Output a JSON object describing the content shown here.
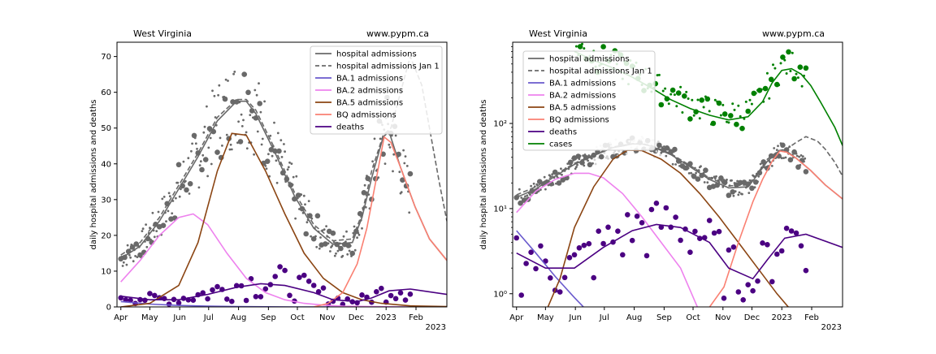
{
  "chart_data": [
    {
      "type": "line",
      "title_left": "West Virginia",
      "title_right": "www.pypm.ca",
      "xlabel": "",
      "ylabel": "daily hospital admissions and deaths",
      "yscale": "linear",
      "ylim": [
        0,
        74
      ],
      "yticks": [
        "0",
        "10",
        "20",
        "30",
        "40",
        "50",
        "60",
        "70"
      ],
      "ytick_values": [
        0,
        10,
        20,
        30,
        40,
        50,
        60,
        70
      ],
      "xlim_days": [
        -4,
        338
      ],
      "xticks": [
        "Apr",
        "May",
        "Jun",
        "Jul",
        "Aug",
        "Sep",
        "Oct",
        "Nov",
        "Dec",
        "2023",
        "Feb"
      ],
      "xtick_days": [
        0,
        30,
        61,
        91,
        122,
        153,
        183,
        214,
        244,
        275,
        306
      ],
      "xaxis_year": "2023",
      "legend": [
        "hospital admissions",
        "hospital admissions Jan 1",
        "BA.1 admissions",
        "BA.2 admissions",
        "BA.5 admissions",
        "BQ admissions",
        "deaths"
      ],
      "colors": {
        "hospital": "#696969",
        "ba1": "#6a5acd",
        "ba2": "#ee82ee",
        "ba5": "#8b4513",
        "bq": "#fa8072",
        "deaths": "#4b0082",
        "cases": "#008000"
      },
      "series": [
        {
          "name": "hospital admissions",
          "x": [
            0,
            20,
            40,
            60,
            80,
            100,
            120,
            130,
            140,
            160,
            180,
            200,
            220,
            240,
            250,
            260,
            272,
            278,
            290,
            305,
            320,
            338
          ],
          "y": [
            13.5,
            17,
            24,
            33,
            42,
            52,
            57.5,
            57.5,
            54,
            43,
            31,
            22,
            17.5,
            18,
            25,
            36,
            47.5,
            49,
            39,
            28,
            19,
            13
          ]
        },
        {
          "name": "hospital admissions Jan 1",
          "x": [
            0,
            20,
            40,
            60,
            80,
            100,
            120,
            130,
            140,
            160,
            180,
            200,
            220,
            240,
            250,
            260,
            272,
            280,
            290,
            300,
            312,
            320,
            330,
            338
          ],
          "y": [
            14.5,
            18,
            25,
            34,
            43,
            53,
            58,
            58,
            55,
            44,
            32,
            23,
            18.5,
            19,
            26,
            38,
            48,
            50,
            60,
            70,
            62,
            50,
            35,
            24
          ]
        },
        {
          "name": "BA.1 admissions",
          "x": [
            0,
            30,
            60,
            90,
            120,
            150,
            180,
            210,
            240,
            270,
            300,
            338
          ],
          "y": [
            1.5,
            0.8,
            0.4,
            0.2,
            0.1,
            0.05,
            0,
            0,
            0,
            0,
            0,
            0
          ]
        },
        {
          "name": "BA.2 admissions",
          "x": [
            0,
            20,
            40,
            60,
            75,
            90,
            110,
            130,
            150,
            170,
            190,
            210,
            230,
            260,
            300,
            338
          ],
          "y": [
            7,
            13,
            20,
            25,
            26,
            23,
            15,
            8,
            4,
            2,
            1,
            0.5,
            0.2,
            0.1,
            0,
            0
          ]
        },
        {
          "name": "BA.5 admissions",
          "x": [
            0,
            30,
            60,
            80,
            100,
            115,
            130,
            150,
            170,
            190,
            210,
            230,
            250,
            270,
            300,
            338
          ],
          "y": [
            0,
            1,
            6,
            18,
            38,
            48.5,
            48,
            38,
            26,
            15,
            8,
            4,
            2,
            1,
            0.3,
            0.1
          ]
        },
        {
          "name": "BQ admissions",
          "x": [
            200,
            215,
            230,
            245,
            255,
            265,
            273,
            280,
            290,
            305,
            320,
            338
          ],
          "y": [
            0,
            1,
            4,
            12,
            22,
            36,
            47.5,
            46,
            39,
            28,
            19,
            13
          ]
        },
        {
          "name": "deaths",
          "x": [
            0,
            30,
            60,
            90,
            120,
            145,
            170,
            200,
            220,
            245,
            260,
            278,
            300,
            338
          ],
          "y": [
            3,
            2,
            2,
            3.5,
            5.5,
            6.5,
            6,
            4,
            2,
            1.5,
            2.5,
            4.5,
            5,
            3.5
          ]
        }
      ]
    },
    {
      "type": "line",
      "title_left": "West Virginia",
      "title_right": "www.pypm.ca",
      "xlabel": "",
      "ylabel": "daily hospital admissions and deaths",
      "yscale": "log",
      "ylim": [
        0.7,
        900
      ],
      "yticks": [
        "10⁰",
        "10¹",
        "10²"
      ],
      "ytick_values": [
        1,
        10,
        100
      ],
      "xlim_days": [
        -4,
        338
      ],
      "xticks": [
        "Apr",
        "May",
        "Jun",
        "Jul",
        "Aug",
        "Sep",
        "Oct",
        "Nov",
        "Dec",
        "2023",
        "Feb"
      ],
      "xtick_days": [
        0,
        30,
        61,
        91,
        122,
        153,
        183,
        214,
        244,
        275,
        306
      ],
      "xaxis_year": "2023",
      "legend": [
        "hospital admissions",
        "hospital admissions Jan 1",
        "BA.1 admissions",
        "BA.2 admissions",
        "BA.5 admissions",
        "BQ admissions",
        "deaths",
        "cases"
      ],
      "series": [
        {
          "name": "hospital admissions",
          "x": [
            0,
            20,
            40,
            60,
            80,
            100,
            120,
            130,
            140,
            160,
            180,
            200,
            220,
            240,
            250,
            260,
            272,
            278,
            290,
            305,
            320,
            338
          ],
          "y": [
            13.5,
            17,
            24,
            33,
            42,
            52,
            57.5,
            57.5,
            54,
            43,
            31,
            22,
            17.5,
            18,
            25,
            36,
            47.5,
            49,
            39,
            28,
            19,
            13
          ]
        },
        {
          "name": "hospital admissions Jan 1",
          "x": [
            0,
            20,
            40,
            60,
            80,
            100,
            120,
            130,
            140,
            160,
            180,
            200,
            220,
            240,
            250,
            260,
            272,
            280,
            290,
            300,
            312,
            320,
            330,
            338
          ],
          "y": [
            14.5,
            18,
            25,
            34,
            43,
            53,
            58,
            58,
            55,
            44,
            32,
            23,
            18.5,
            19,
            26,
            38,
            48,
            50,
            60,
            70,
            62,
            50,
            35,
            24
          ]
        },
        {
          "name": "BA.1 admissions",
          "x": [
            0,
            20,
            40,
            60,
            75
          ],
          "y": [
            5.5,
            3,
            1.6,
            0.9,
            0.6
          ]
        },
        {
          "name": "BA.2 admissions",
          "x": [
            0,
            20,
            40,
            60,
            75,
            90,
            110,
            130,
            150,
            170,
            190
          ],
          "y": [
            9,
            16,
            22,
            26,
            26,
            23,
            15,
            8,
            4,
            2,
            0.6
          ]
        },
        {
          "name": "BA.5 admissions",
          "x": [
            30,
            45,
            60,
            80,
            100,
            115,
            130,
            150,
            170,
            190,
            210,
            230,
            250,
            270,
            300,
            306
          ],
          "y": [
            0.6,
            1.5,
            6,
            18,
            38,
            48.5,
            48,
            38,
            26,
            15,
            8,
            4,
            2,
            1,
            0.4,
            0.6
          ]
        },
        {
          "name": "BQ admissions",
          "x": [
            196,
            215,
            230,
            245,
            255,
            265,
            273,
            280,
            290,
            305,
            320,
            338
          ],
          "y": [
            0.6,
            1.2,
            4,
            12,
            22,
            36,
            47.5,
            46,
            39,
            28,
            19,
            13
          ]
        },
        {
          "name": "deaths",
          "x": [
            0,
            30,
            60,
            90,
            120,
            145,
            170,
            200,
            220,
            245,
            260,
            278,
            300,
            338
          ],
          "y": [
            3,
            2,
            2,
            3.5,
            5.5,
            6.5,
            6,
            4,
            2,
            1.5,
            2.5,
            4.5,
            5,
            3.5
          ]
        },
        {
          "name": "cases",
          "x": [
            60,
            80,
            100,
            120,
            140,
            160,
            180,
            200,
            220,
            240,
            255,
            265,
            275,
            285,
            295,
            305,
            315,
            330,
            338
          ],
          "y": [
            700,
            550,
            450,
            350,
            260,
            190,
            150,
            125,
            110,
            120,
            180,
            300,
            420,
            440,
            380,
            280,
            180,
            90,
            55
          ]
        }
      ]
    }
  ]
}
